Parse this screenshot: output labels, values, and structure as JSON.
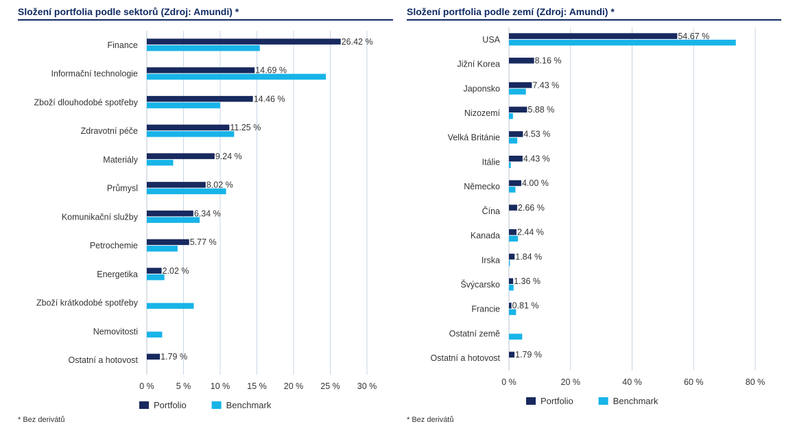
{
  "colors": {
    "portfolio": "#17295e",
    "benchmark": "#18b4e8",
    "grid": "#c9d6e3",
    "title": "#0f2a62"
  },
  "panels": {
    "left": {
      "title": "Složení portfolia podle sektorů (Zdroj: Amundi) *",
      "footnote": "* Bez derivátů"
    },
    "right": {
      "title": "Složení portfolia podle zemí (Zdroj: Amundi) *",
      "footnote": "* Bez derivátů"
    }
  },
  "chart_data": [
    {
      "type": "bar",
      "orientation": "horizontal",
      "categories": [
        "Finance",
        "Informační technologie",
        "Zboží dlouhodobé spotřeby",
        "Zdravotní péče",
        "Materiály",
        "Průmysl",
        "Komunikační služby",
        "Petrochemie",
        "Energetika",
        "Zboží krátkodobé spotřeby",
        "Nemovitosti",
        "Ostatní a hotovost"
      ],
      "series": [
        {
          "name": "Portfolio",
          "values": [
            26.42,
            14.69,
            14.46,
            11.25,
            9.24,
            8.02,
            6.34,
            5.77,
            2.02,
            null,
            null,
            1.79
          ],
          "labels": [
            "26.42 %",
            "14.69 %",
            "14.46 %",
            "11.25 %",
            "9.24 %",
            "8.02 %",
            "6.34 %",
            "5.77 %",
            "2.02 %",
            "",
            "",
            "1.79 %"
          ]
        },
        {
          "name": "Benchmark",
          "values": [
            15.4,
            24.4,
            10.0,
            11.9,
            3.6,
            10.8,
            7.2,
            4.2,
            2.4,
            6.4,
            2.1,
            null
          ]
        }
      ],
      "xlim": [
        0,
        30
      ],
      "ticks": [
        "0 %",
        "5 %",
        "10 %",
        "15 %",
        "20 %",
        "25 %",
        "30 %"
      ],
      "tick_values": [
        0,
        5,
        10,
        15,
        20,
        25,
        30
      ],
      "grid": true,
      "legend": "bottom"
    },
    {
      "type": "bar",
      "orientation": "horizontal",
      "categories": [
        "USA",
        "Jižní Korea",
        "Japonsko",
        "Nizozemí",
        "Velká Británie",
        "Itálie",
        "Německo",
        "Čína",
        "Kanada",
        "Irska",
        "Švýcarsko",
        "Francie",
        "Ostatní země",
        "Ostatní a hotovost"
      ],
      "series": [
        {
          "name": "Portfolio",
          "values": [
            54.67,
            8.16,
            7.43,
            5.88,
            4.53,
            4.43,
            4.0,
            2.66,
            2.44,
            1.84,
            1.36,
            0.81,
            null,
            1.79
          ],
          "labels": [
            "54.67 %",
            "8.16 %",
            "7.43 %",
            "5.88 %",
            "4.53 %",
            "4.43 %",
            "4.00 %",
            "2.66 %",
            "2.44 %",
            "1.84 %",
            "1.36 %",
            "0.81 %",
            "",
            "1.79 %"
          ]
        },
        {
          "name": "Benchmark",
          "values": [
            73.7,
            null,
            5.5,
            1.3,
            2.7,
            0.6,
            2.1,
            null,
            2.9,
            0.3,
            1.5,
            2.3,
            4.3,
            null
          ]
        }
      ],
      "xlim": [
        0,
        80
      ],
      "ticks": [
        "0 %",
        "20 %",
        "40 %",
        "60 %",
        "80 %"
      ],
      "tick_values": [
        0,
        20,
        40,
        60,
        80
      ],
      "grid": true,
      "legend": "bottom"
    }
  ]
}
